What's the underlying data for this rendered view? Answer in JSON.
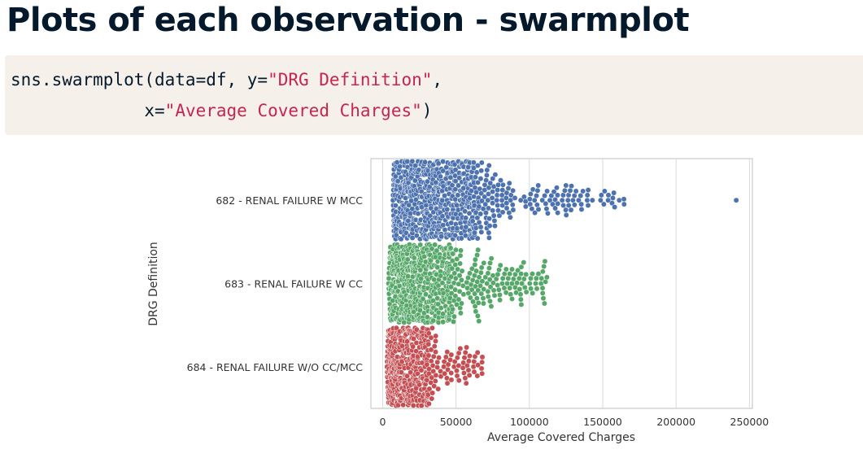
{
  "title": "Plots of each observation - swarmplot",
  "code": {
    "line1": {
      "prefix": "sns.swarmplot(data=df, y=",
      "string": "\"DRG Definition\"",
      "suffix": ","
    },
    "line2": {
      "indent": "             ",
      "prefix": "x=",
      "string": "\"Average Covered Charges\"",
      "suffix": ")"
    }
  },
  "chart_data": {
    "type": "scatter",
    "kind": "swarmplot",
    "xlabel": "Average Covered Charges",
    "ylabel": "DRG Definition",
    "xlim": [
      -8000,
      252000
    ],
    "xticks": [
      0,
      50000,
      100000,
      150000,
      200000,
      250000
    ],
    "xtick_labels": [
      "0",
      "50000",
      "100000",
      "150000",
      "200000",
      "250000"
    ],
    "grid": "vertical",
    "categories": [
      "682 - RENAL FAILURE W MCC",
      "683 - RENAL FAILURE W CC",
      "684 - RENAL FAILURE W/O CC/MCC"
    ],
    "series": [
      {
        "category": "682 - RENAL FAILURE W MCC",
        "color": "#4c72b0",
        "min": 7000,
        "q1": 22000,
        "median": 38000,
        "q3": 62000,
        "max": 165000,
        "outliers": [
          241000
        ],
        "count": 700
      },
      {
        "category": "683 - RENAL FAILURE W CC",
        "color": "#55a868",
        "min": 4000,
        "q1": 15000,
        "median": 26000,
        "q3": 45000,
        "max": 112000,
        "outliers": [],
        "count": 650
      },
      {
        "category": "684 - RENAL FAILURE W/O CC/MCC",
        "color": "#c44e52",
        "min": 3000,
        "q1": 10000,
        "median": 18000,
        "q3": 30000,
        "max": 68000,
        "outliers": [],
        "count": 450
      }
    ]
  }
}
